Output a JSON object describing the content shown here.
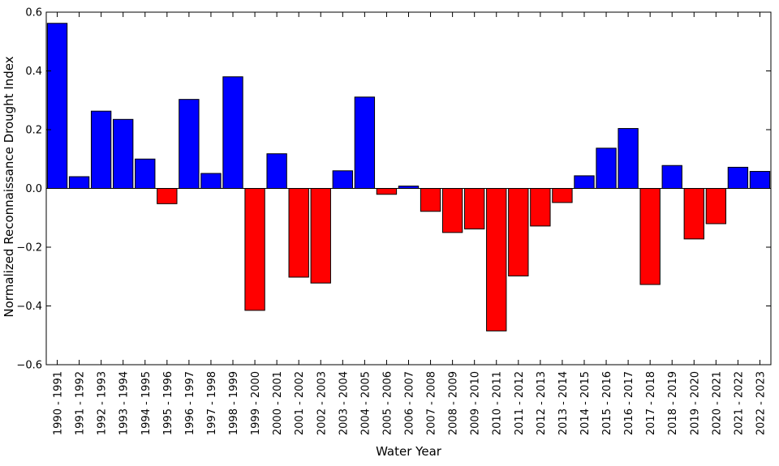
{
  "chart_data": {
    "type": "bar",
    "xlabel": "Water Year",
    "ylabel": "Normalized Reconnaissance Drought Index",
    "ylim": [
      -0.6,
      0.6
    ],
    "yticks": [
      -0.6,
      -0.4,
      -0.2,
      0.0,
      0.2,
      0.4,
      0.6
    ],
    "ytick_labels": [
      "−0.6",
      "−0.4",
      "−0.2",
      "0.0",
      "0.2",
      "0.4",
      "0.6"
    ],
    "grid": false,
    "categories": [
      "1990 - 1991",
      "1991 - 1992",
      "1992 - 1993",
      "1993 - 1994",
      "1994 - 1995",
      "1995 - 1996",
      "1996 - 1997",
      "1997 - 1998",
      "1998 - 1999",
      "1999 - 2000",
      "2000 - 2001",
      "2001 - 2002",
      "2002 - 2003",
      "2003 - 2004",
      "2004 - 2005",
      "2005 - 2006",
      "2006 - 2007",
      "2007 - 2008",
      "2008 - 2009",
      "2009 - 2010",
      "2010 - 2011",
      "2011 - 2012",
      "2012 - 2013",
      "2013 - 2014",
      "2014 - 2015",
      "2015 - 2016",
      "2016 - 2017",
      "2017 - 2018",
      "2018 - 2019",
      "2019 - 2020",
      "2020 - 2021",
      "2021 - 2022",
      "2022 - 2023"
    ],
    "values": [
      0.562,
      0.04,
      0.263,
      0.235,
      0.1,
      -0.052,
      0.303,
      0.051,
      0.38,
      -0.415,
      0.118,
      -0.302,
      -0.322,
      0.06,
      0.311,
      -0.02,
      0.008,
      -0.078,
      -0.15,
      -0.138,
      -0.485,
      -0.298,
      -0.128,
      -0.048,
      0.043,
      0.137,
      0.204,
      -0.327,
      0.078,
      -0.172,
      -0.12,
      0.072,
      0.058
    ],
    "colors": {
      "positive": "#0000ff",
      "negative": "#ff0000",
      "edge": "#000000",
      "axis": "#000000",
      "background": "#ffffff"
    }
  }
}
